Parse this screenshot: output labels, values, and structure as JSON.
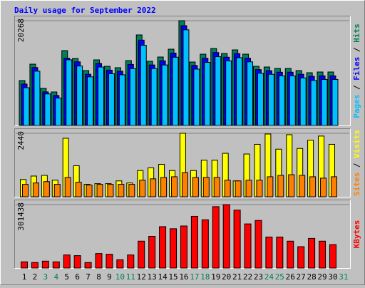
{
  "chart_data": {
    "type": "bar",
    "title": "Daily usage for September 2022",
    "categories": [
      "1",
      "2",
      "3",
      "4",
      "5",
      "6",
      "7",
      "8",
      "9",
      "10",
      "11",
      "12",
      "13",
      "14",
      "15",
      "16",
      "17",
      "18",
      "19",
      "20",
      "21",
      "22",
      "23",
      "24",
      "25",
      "26",
      "27",
      "28",
      "29",
      "30",
      "31"
    ],
    "category_colors": [
      "#000000",
      "#000000",
      "#00805c",
      "#00805c",
      "#000000",
      "#000000",
      "#000000",
      "#000000",
      "#000000",
      "#00805c",
      "#00805c",
      "#000000",
      "#000000",
      "#000000",
      "#000000",
      "#000000",
      "#00805c",
      "#00805c",
      "#000000",
      "#000000",
      "#000000",
      "#000000",
      "#000000",
      "#00805c",
      "#00805c",
      "#000000",
      "#000000",
      "#000000",
      "#000000",
      "#000000",
      "#00805c"
    ],
    "legend_separator": " / ",
    "panels": [
      {
        "ylim": [
          0,
          20268
        ],
        "yticks": [
          20268
        ],
        "series": [
          {
            "name": "Hits",
            "color": "#00805c",
            "values": [
              8686,
              11858,
              7170,
              6480,
              14477,
              12960,
              10617,
              12685,
              11444,
              11168,
              12547,
              17510,
              12409,
              13236,
              14753,
              20268,
              12271,
              13788,
              14891,
              13926,
              14615,
              13788,
              11444,
              11306,
              11030,
              11030,
              10617,
              10203,
              10341,
              10341,
              null
            ]
          },
          {
            "name": "Files",
            "color": "#0000ff",
            "values": [
              8000,
              11200,
              6500,
              5800,
              13000,
              12300,
              9900,
              12000,
              10700,
              10500,
              11800,
              16500,
              11700,
              12500,
              14000,
              19300,
              11600,
              13000,
              14100,
              13200,
              13900,
              13000,
              10800,
              10600,
              10300,
              10300,
              9900,
              9500,
              9600,
              9600,
              null
            ]
          },
          {
            "name": "Pages",
            "color": "#00c0ff",
            "values": [
              7300,
              10500,
              6100,
              5300,
              12700,
              11500,
              9400,
              11300,
              10000,
              9800,
              11000,
              15500,
              11000,
              11700,
              13200,
              18500,
              10900,
              12200,
              13300,
              12500,
              13100,
              12300,
              10100,
              9900,
              9600,
              9600,
              9200,
              8700,
              8900,
              8900,
              null
            ]
          }
        ]
      },
      {
        "ylim": [
          0,
          2440
        ],
        "yticks": [
          2440
        ],
        "series": [
          {
            "name": "Visits",
            "color": "#ffff00",
            "values": [
              663,
              796,
              822,
              637,
              2250,
              1193,
              477,
              504,
              504,
              610,
              530,
              1008,
              1114,
              1247,
              1008,
              2440,
              1008,
              1406,
              1406,
              1671,
              610,
              1644,
              2016,
              2413,
              1830,
              2386,
              1857,
              2175,
              2334,
              2016,
              null
            ]
          },
          {
            "name": "Sites",
            "color": "#ff8000",
            "values": [
              477,
              530,
              583,
              477,
              743,
              557,
              451,
              477,
              477,
              477,
              477,
              637,
              690,
              743,
              769,
              928,
              743,
              743,
              743,
              637,
              610,
              637,
              637,
              769,
              822,
              849,
              822,
              769,
              716,
              769,
              null
            ]
          }
        ]
      },
      {
        "ylim": [
          0,
          301438
        ],
        "yticks": [
          301438
        ],
        "series": [
          {
            "name": "KBytes",
            "color": "#ff0000",
            "values": [
              29489,
              26212,
              32765,
              29489,
              62254,
              58977,
              26212,
              68807,
              65530,
              39318,
              62254,
              127784,
              150719,
              196590,
              186761,
              199867,
              245738,
              229355,
              291609,
              301438,
              275226,
              209696,
              226079,
              147443,
              147443,
              127784,
              101572,
              140890,
              127784,
              111401,
              null
            ]
          }
        ]
      }
    ]
  }
}
